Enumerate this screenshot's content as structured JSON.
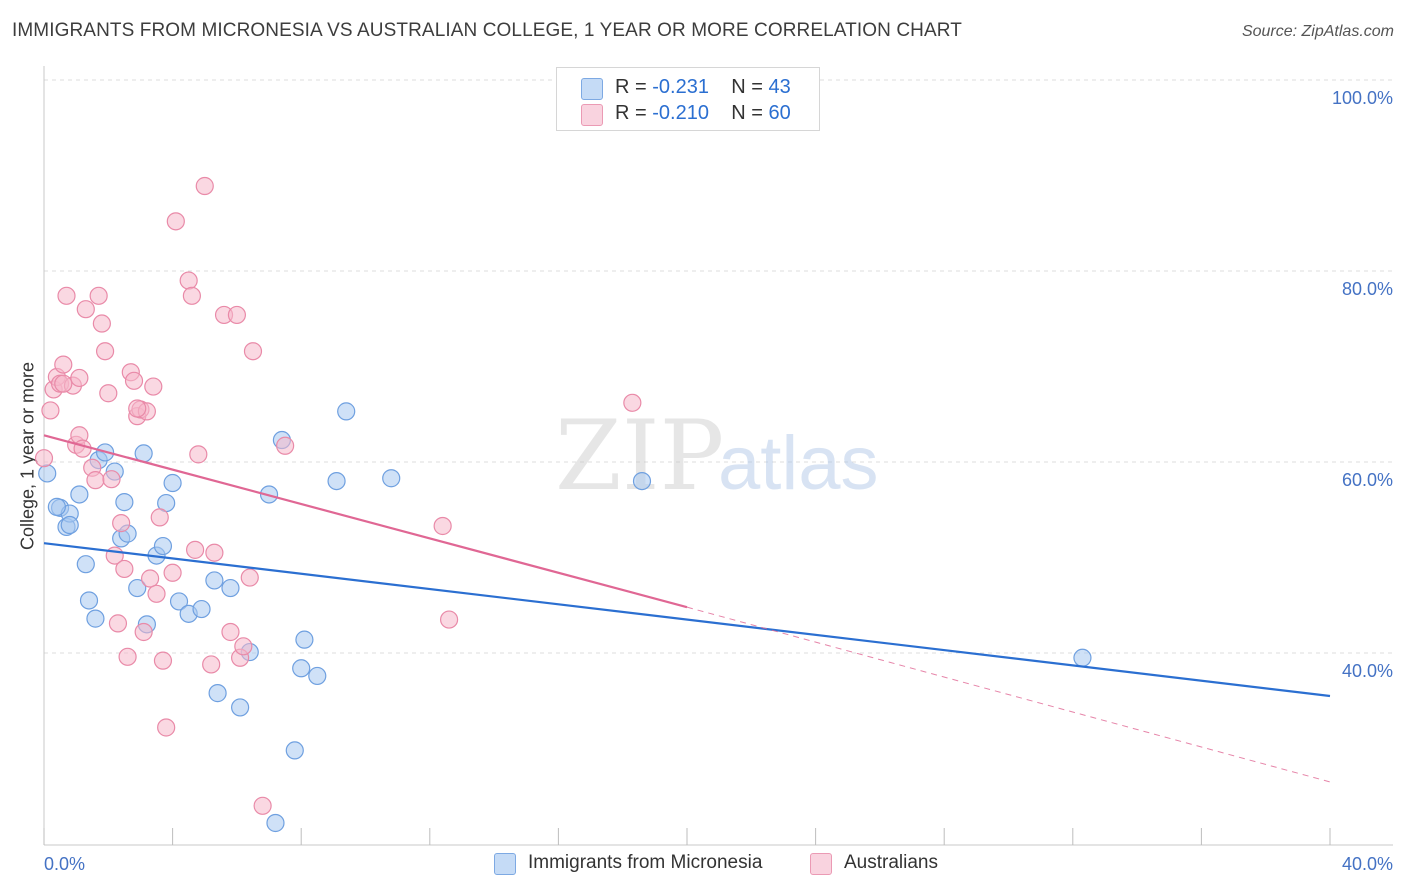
{
  "title": "IMMIGRANTS FROM MICRONESIA VS AUSTRALIAN COLLEGE, 1 YEAR OR MORE CORRELATION CHART",
  "source": "Source: ZipAtlas.com",
  "watermark": {
    "zip": "ZIP",
    "atlas": "atlas"
  },
  "legend_top": [
    {
      "r_label": "R =",
      "r_value": "-0.231",
      "n_label": "N =",
      "n_value": "43",
      "color": "#a8c8f0"
    },
    {
      "r_label": "R =",
      "r_value": "-0.210",
      "n_label": "N =",
      "n_value": "60",
      "color": "#f5b8cb"
    }
  ],
  "legend_bottom": [
    {
      "label": "Immigrants from Micronesia",
      "color": "#a8c8f0"
    },
    {
      "label": "Australians",
      "color": "#f5b8cb"
    }
  ],
  "chart_data": {
    "type": "scatter",
    "title": "IMMIGRANTS FROM MICRONESIA VS AUSTRALIAN COLLEGE, 1 YEAR OR MORE CORRELATION CHART",
    "xlabel": "",
    "ylabel": "College, 1 year or more",
    "xlim": [
      0,
      40
    ],
    "ylim": [
      20,
      102
    ],
    "x_tick_labels": [
      "0.0%",
      "40.0%"
    ],
    "y_tick_labels": [
      "100.0%",
      "80.0%",
      "60.0%",
      "40.0%"
    ],
    "y_ticks": [
      100,
      80,
      60,
      40
    ],
    "grid": true,
    "legend_position": "top-center",
    "series": [
      {
        "name": "Immigrants from Micronesia",
        "color": "#6fa0e0",
        "fill": "#a8c8f0",
        "trend_color": "#2b6fd1",
        "trend": {
          "x": [
            0,
            40
          ],
          "y": [
            51.5,
            35.5
          ]
        },
        "points": [
          [
            0.1,
            58.8
          ],
          [
            0.5,
            55.2
          ],
          [
            0.7,
            53.2
          ],
          [
            0.8,
            54.6
          ],
          [
            1.1,
            56.6
          ],
          [
            1.3,
            49.3
          ],
          [
            1.4,
            45.5
          ],
          [
            1.6,
            43.6
          ],
          [
            1.7,
            60.2
          ],
          [
            1.9,
            61.0
          ],
          [
            2.2,
            59.0
          ],
          [
            2.4,
            52.0
          ],
          [
            2.5,
            55.8
          ],
          [
            2.6,
            52.5
          ],
          [
            2.9,
            46.8
          ],
          [
            3.1,
            60.9
          ],
          [
            3.2,
            43.0
          ],
          [
            3.5,
            50.2
          ],
          [
            3.7,
            51.2
          ],
          [
            3.8,
            55.7
          ],
          [
            4.0,
            57.8
          ],
          [
            4.2,
            45.4
          ],
          [
            4.5,
            44.1
          ],
          [
            4.9,
            44.6
          ],
          [
            5.3,
            47.6
          ],
          [
            5.4,
            35.8
          ],
          [
            5.8,
            46.8
          ],
          [
            6.1,
            34.3
          ],
          [
            6.4,
            40.1
          ],
          [
            7.0,
            56.6
          ],
          [
            7.4,
            62.3
          ],
          [
            7.2,
            22.2
          ],
          [
            7.8,
            29.8
          ],
          [
            8.0,
            38.4
          ],
          [
            8.1,
            41.4
          ],
          [
            8.5,
            37.6
          ],
          [
            9.1,
            58.0
          ],
          [
            9.4,
            65.3
          ],
          [
            10.8,
            58.3
          ],
          [
            18.6,
            58.0
          ],
          [
            32.3,
            39.5
          ],
          [
            0.4,
            55.3
          ],
          [
            0.8,
            53.4
          ]
        ]
      },
      {
        "name": "Australians",
        "color": "#e98aa8",
        "fill": "#f5b8cb",
        "trend_color": "#e06794",
        "trend": {
          "x": [
            0,
            20
          ],
          "y": [
            62.8,
            44.8
          ]
        },
        "trend_dashed": {
          "x": [
            20,
            40
          ],
          "y": [
            44.8,
            26.5
          ]
        },
        "points": [
          [
            0.0,
            60.4
          ],
          [
            0.2,
            65.4
          ],
          [
            0.3,
            67.6
          ],
          [
            0.4,
            68.9
          ],
          [
            0.5,
            68.2
          ],
          [
            0.6,
            70.2
          ],
          [
            0.7,
            77.4
          ],
          [
            0.9,
            68.0
          ],
          [
            1.0,
            61.8
          ],
          [
            1.1,
            62.8
          ],
          [
            1.2,
            61.4
          ],
          [
            1.3,
            76.0
          ],
          [
            1.5,
            59.4
          ],
          [
            1.6,
            58.1
          ],
          [
            1.7,
            77.4
          ],
          [
            1.8,
            74.5
          ],
          [
            1.9,
            71.6
          ],
          [
            2.0,
            67.2
          ],
          [
            2.1,
            58.2
          ],
          [
            2.2,
            50.2
          ],
          [
            2.3,
            43.1
          ],
          [
            2.4,
            53.6
          ],
          [
            2.5,
            48.8
          ],
          [
            2.6,
            39.6
          ],
          [
            2.7,
            69.4
          ],
          [
            2.8,
            68.5
          ],
          [
            2.9,
            64.8
          ],
          [
            3.0,
            65.5
          ],
          [
            3.1,
            42.2
          ],
          [
            3.2,
            65.3
          ],
          [
            3.3,
            47.8
          ],
          [
            3.4,
            67.9
          ],
          [
            3.5,
            46.2
          ],
          [
            3.6,
            54.2
          ],
          [
            3.7,
            39.2
          ],
          [
            3.8,
            32.2
          ],
          [
            4.0,
            48.4
          ],
          [
            4.1,
            85.2
          ],
          [
            4.5,
            79.0
          ],
          [
            4.6,
            77.4
          ],
          [
            4.7,
            50.8
          ],
          [
            4.8,
            60.8
          ],
          [
            5.0,
            88.9
          ],
          [
            5.2,
            38.8
          ],
          [
            5.3,
            50.5
          ],
          [
            5.6,
            75.4
          ],
          [
            5.8,
            42.2
          ],
          [
            6.0,
            75.4
          ],
          [
            6.1,
            39.5
          ],
          [
            6.2,
            40.7
          ],
          [
            6.4,
            47.9
          ],
          [
            6.5,
            71.6
          ],
          [
            6.8,
            24.0
          ],
          [
            7.5,
            61.7
          ],
          [
            12.4,
            53.3
          ],
          [
            12.6,
            43.5
          ],
          [
            18.3,
            66.2
          ],
          [
            1.1,
            68.8
          ],
          [
            0.6,
            68.2
          ],
          [
            2.9,
            65.6
          ]
        ]
      }
    ]
  }
}
